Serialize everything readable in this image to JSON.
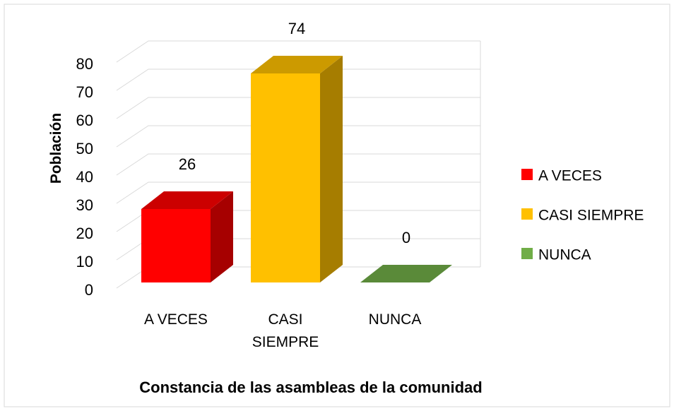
{
  "chart_data": {
    "type": "bar3d",
    "x_label": "Constancia de las asambleas de la comunidad",
    "y_label": "Población",
    "categories": [
      "A VECES",
      "CASI SIEMPRE",
      "NUNCA"
    ],
    "values": [
      26,
      74,
      0
    ],
    "colors": [
      "#ff0000",
      "#ffc000",
      "#70ad47"
    ],
    "ylim": [
      0,
      80
    ],
    "yticks": [
      0,
      10,
      20,
      30,
      40,
      50,
      60,
      70,
      80
    ],
    "grid": true,
    "legend": "right"
  }
}
